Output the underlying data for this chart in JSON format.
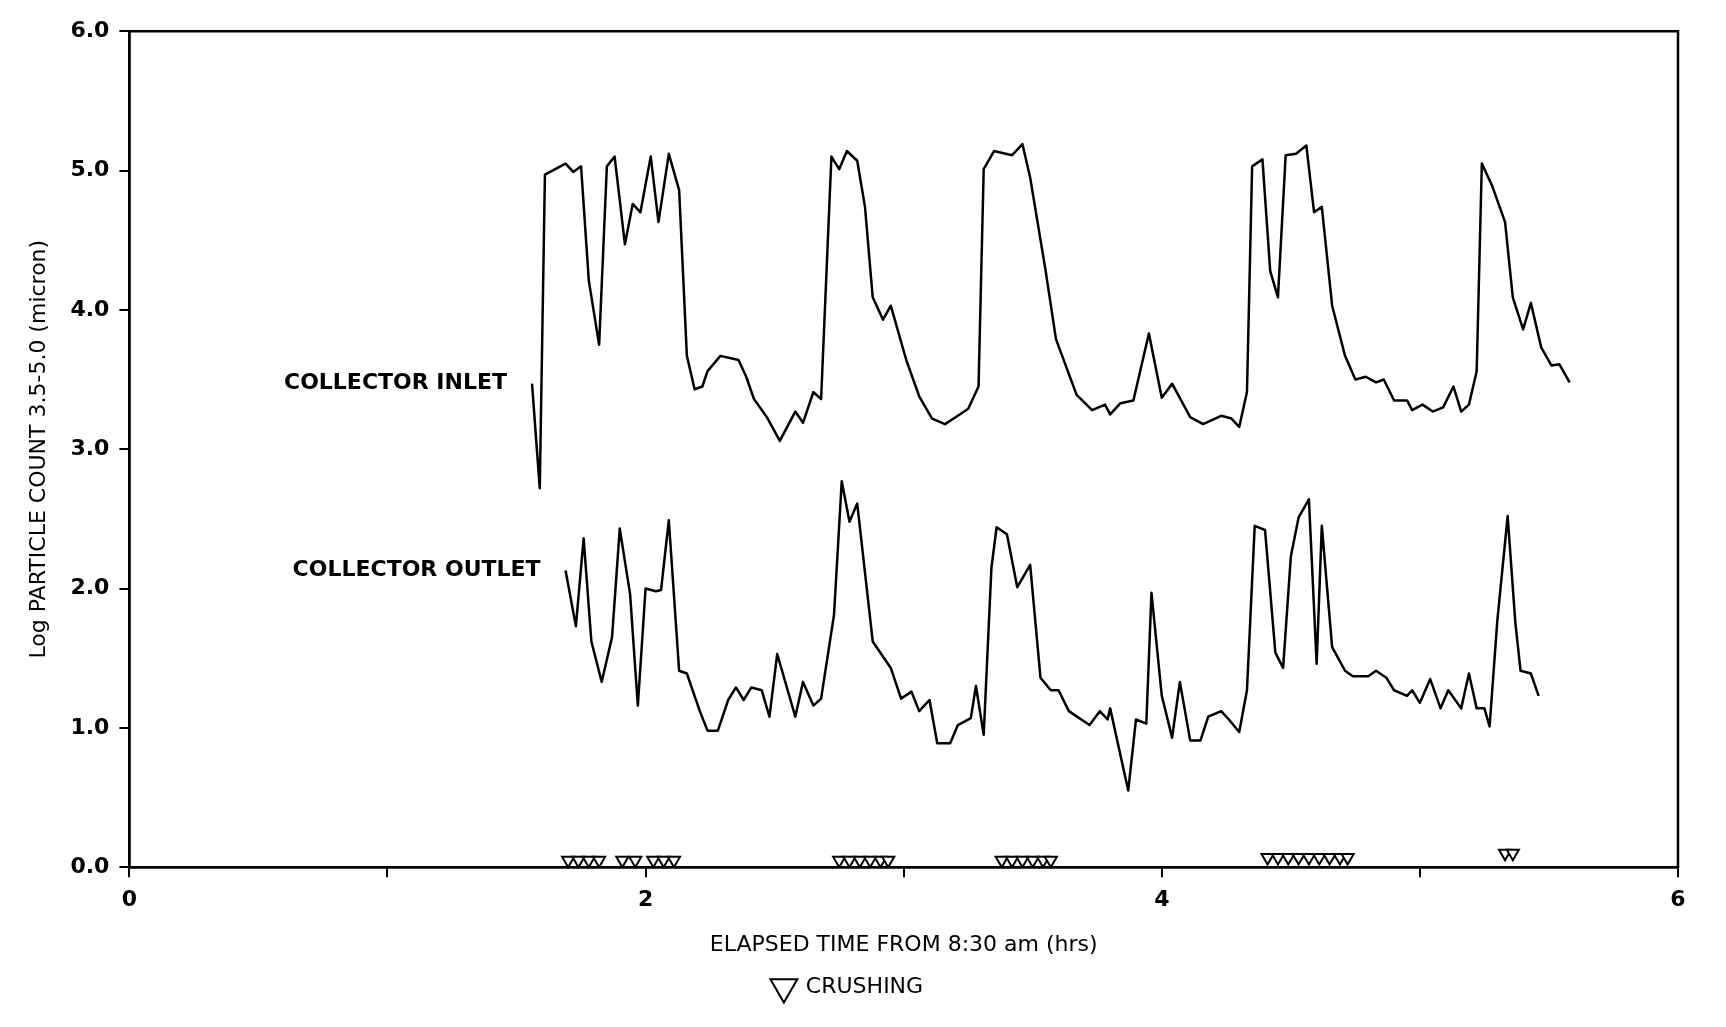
{
  "chart_data": {
    "type": "line",
    "xlabel": "ELAPSED TIME FROM 8:30 am (hrs)",
    "ylabel": "Log PARTICLE COUNT 3.5-5.0 (micron)",
    "xlim": [
      0,
      6
    ],
    "xticks": [
      0,
      {
        "value": 1,
        "label": null
      },
      2,
      {
        "value": 3,
        "label": null
      },
      4,
      {
        "value": 5,
        "label": null
      },
      6
    ],
    "ylim": [
      0,
      6
    ],
    "yticks": [
      {
        "value": 0,
        "label": "0.0"
      },
      {
        "value": 1,
        "label": "1.0"
      },
      {
        "value": 2,
        "label": "2.0"
      },
      {
        "value": 3,
        "label": "3.0"
      },
      {
        "value": 4,
        "label": "4.0"
      },
      {
        "value": 5,
        "label": "5.0"
      },
      {
        "value": 6,
        "label": "6.0"
      }
    ],
    "grid": false,
    "legend": "bottom",
    "line_style": "solid",
    "series": [
      {
        "name": "COLLECTOR INLET",
        "color": "#000000",
        "marker": "none",
        "x": [
          1.56,
          1.59,
          1.61,
          1.69,
          1.72,
          1.75,
          1.78,
          1.82,
          1.85,
          1.88,
          1.92,
          1.95,
          1.98,
          2.02,
          2.05,
          2.09,
          2.13,
          2.16,
          2.19,
          2.22,
          2.24,
          2.29,
          2.36,
          2.39,
          2.42,
          2.47,
          2.52,
          2.58,
          2.61,
          2.65,
          2.68,
          2.72,
          2.75,
          2.78,
          2.82,
          2.85,
          2.88,
          2.92,
          2.95,
          3.01,
          3.06,
          3.11,
          3.16,
          3.21,
          3.25,
          3.29,
          3.31,
          3.35,
          3.42,
          3.46,
          3.49,
          3.55,
          3.59,
          3.67,
          3.73,
          3.78,
          3.8,
          3.84,
          3.89,
          3.95,
          4.0,
          4.04,
          4.11,
          4.16,
          4.23,
          4.27,
          4.3,
          4.33,
          4.35,
          4.39,
          4.42,
          4.45,
          4.48,
          4.52,
          4.56,
          4.59,
          4.62,
          4.66,
          4.71,
          4.75,
          4.79,
          4.83,
          4.86,
          4.9,
          4.95,
          4.97,
          5.01,
          5.05,
          5.09,
          5.13,
          5.16,
          5.19,
          5.22,
          5.24,
          5.28,
          5.33,
          5.36,
          5.4,
          5.43,
          5.47,
          5.51,
          5.54,
          5.58
        ],
        "values": [
          3.47,
          2.72,
          4.97,
          5.05,
          4.99,
          5.03,
          4.21,
          3.75,
          5.03,
          5.1,
          4.47,
          4.76,
          4.7,
          5.1,
          4.63,
          5.12,
          4.86,
          3.67,
          3.43,
          3.45,
          3.56,
          3.67,
          3.64,
          3.52,
          3.36,
          3.23,
          3.06,
          3.27,
          3.19,
          3.41,
          3.36,
          5.1,
          5.01,
          5.14,
          5.07,
          4.74,
          4.09,
          3.93,
          4.03,
          3.64,
          3.38,
          3.22,
          3.18,
          3.24,
          3.29,
          3.45,
          5.01,
          5.14,
          5.11,
          5.19,
          4.95,
          4.28,
          3.79,
          3.39,
          3.28,
          3.32,
          3.25,
          3.33,
          3.35,
          3.83,
          3.37,
          3.47,
          3.23,
          3.18,
          3.24,
          3.22,
          3.16,
          3.41,
          5.03,
          5.08,
          4.28,
          4.09,
          5.11,
          5.12,
          5.18,
          4.7,
          4.74,
          4.03,
          3.67,
          3.5,
          3.52,
          3.48,
          3.5,
          3.35,
          3.35,
          3.28,
          3.32,
          3.27,
          3.3,
          3.45,
          3.27,
          3.32,
          3.56,
          5.05,
          4.89,
          4.63,
          4.09,
          3.86,
          4.05,
          3.73,
          3.6,
          3.61,
          3.48
        ]
      },
      {
        "name": "COLLECTOR OUTLET",
        "color": "#000000",
        "marker": "none",
        "x": [
          1.69,
          1.73,
          1.76,
          1.79,
          1.83,
          1.87,
          1.9,
          1.94,
          1.97,
          2.0,
          2.04,
          2.06,
          2.09,
          2.13,
          2.16,
          2.21,
          2.24,
          2.28,
          2.32,
          2.35,
          2.38,
          2.41,
          2.45,
          2.48,
          2.51,
          2.58,
          2.61,
          2.65,
          2.68,
          2.73,
          2.76,
          2.79,
          2.82,
          2.88,
          2.95,
          2.99,
          3.03,
          3.06,
          3.1,
          3.13,
          3.18,
          3.21,
          3.26,
          3.28,
          3.31,
          3.34,
          3.36,
          3.4,
          3.44,
          3.49,
          3.53,
          3.57,
          3.6,
          3.64,
          3.72,
          3.76,
          3.79,
          3.8,
          3.87,
          3.9,
          3.94,
          3.96,
          4.0,
          4.04,
          4.07,
          4.11,
          4.15,
          4.18,
          4.23,
          4.26,
          4.3,
          4.33,
          4.36,
          4.4,
          4.44,
          4.47,
          4.5,
          4.53,
          4.57,
          4.6,
          4.62,
          4.66,
          4.71,
          4.74,
          4.8,
          4.83,
          4.87,
          4.9,
          4.95,
          4.97,
          5.0,
          5.04,
          5.08,
          5.11,
          5.16,
          5.19,
          5.22,
          5.25,
          5.27,
          5.3,
          5.34,
          5.37,
          5.39,
          5.43,
          5.46
        ],
        "values": [
          2.13,
          1.73,
          2.36,
          1.62,
          1.33,
          1.65,
          2.43,
          1.96,
          1.16,
          2.0,
          1.98,
          1.99,
          2.49,
          1.41,
          1.39,
          1.12,
          0.98,
          0.98,
          1.2,
          1.29,
          1.2,
          1.29,
          1.27,
          1.08,
          1.53,
          1.08,
          1.33,
          1.16,
          1.21,
          1.81,
          2.77,
          2.48,
          2.61,
          1.62,
          1.43,
          1.21,
          1.26,
          1.12,
          1.2,
          0.89,
          0.89,
          1.02,
          1.07,
          1.3,
          0.95,
          2.15,
          2.44,
          2.39,
          2.01,
          2.17,
          1.36,
          1.27,
          1.27,
          1.12,
          1.02,
          1.12,
          1.06,
          1.14,
          0.55,
          1.06,
          1.03,
          1.97,
          1.23,
          0.93,
          1.33,
          0.91,
          0.91,
          1.08,
          1.12,
          1.06,
          0.97,
          1.27,
          2.45,
          2.42,
          1.54,
          1.43,
          2.23,
          2.51,
          2.64,
          1.46,
          2.45,
          1.58,
          1.41,
          1.37,
          1.37,
          1.41,
          1.36,
          1.27,
          1.23,
          1.27,
          1.18,
          1.35,
          1.14,
          1.27,
          1.14,
          1.39,
          1.14,
          1.14,
          1.01,
          1.77,
          2.52,
          1.75,
          1.41,
          1.39,
          1.23
        ]
      },
      {
        "name": "CRUSHING",
        "type": "scatter",
        "color": "#000000",
        "marker": "triangle",
        "x": [
          1.7,
          1.74,
          1.78,
          1.82,
          1.91,
          1.96,
          2.03,
          2.07,
          2.11,
          2.75,
          2.79,
          2.83,
          2.87,
          2.91,
          2.94,
          3.38,
          3.42,
          3.46,
          3.5,
          3.54,
          3.57,
          4.41,
          4.45,
          4.49,
          4.53,
          4.57,
          4.61,
          4.65,
          4.69,
          4.72,
          5.33,
          5.36
        ],
        "values": [
          0.05,
          0.05,
          0.05,
          0.05,
          0.05,
          0.05,
          0.05,
          0.05,
          0.05,
          0.05,
          0.05,
          0.05,
          0.05,
          0.05,
          0.05,
          0.05,
          0.05,
          0.05,
          0.05,
          0.05,
          0.05,
          0.07,
          0.07,
          0.07,
          0.07,
          0.07,
          0.07,
          0.07,
          0.07,
          0.07,
          0.1,
          0.1
        ]
      }
    ]
  }
}
